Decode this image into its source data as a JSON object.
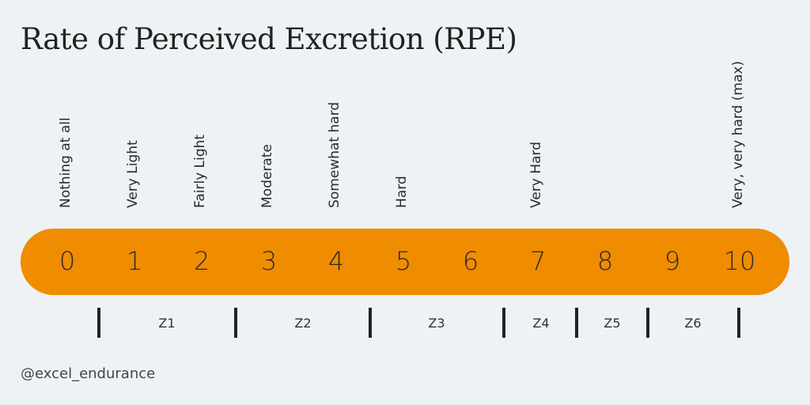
{
  "title": "Rate of Perceived Excretion (RPE)",
  "scale": {
    "levels": [
      {
        "value": "0",
        "label": "Nothing at all"
      },
      {
        "value": "1",
        "label": "Very Light"
      },
      {
        "value": "2",
        "label": "Fairly Light"
      },
      {
        "value": "3",
        "label": "Moderate"
      },
      {
        "value": "4",
        "label": "Somewhat hard"
      },
      {
        "value": "5",
        "label": "Hard"
      },
      {
        "value": "6",
        "label": ""
      },
      {
        "value": "7",
        "label": "Very Hard"
      },
      {
        "value": "8",
        "label": ""
      },
      {
        "value": "9",
        "label": ""
      },
      {
        "value": "10",
        "label": "Very, very hard (max)"
      }
    ],
    "bar_color": "#f08c00"
  },
  "zones": [
    "Z1",
    "Z2",
    "Z3",
    "Z4",
    "Z5",
    "Z6"
  ],
  "footer": {
    "handle": "@excel_endurance"
  }
}
